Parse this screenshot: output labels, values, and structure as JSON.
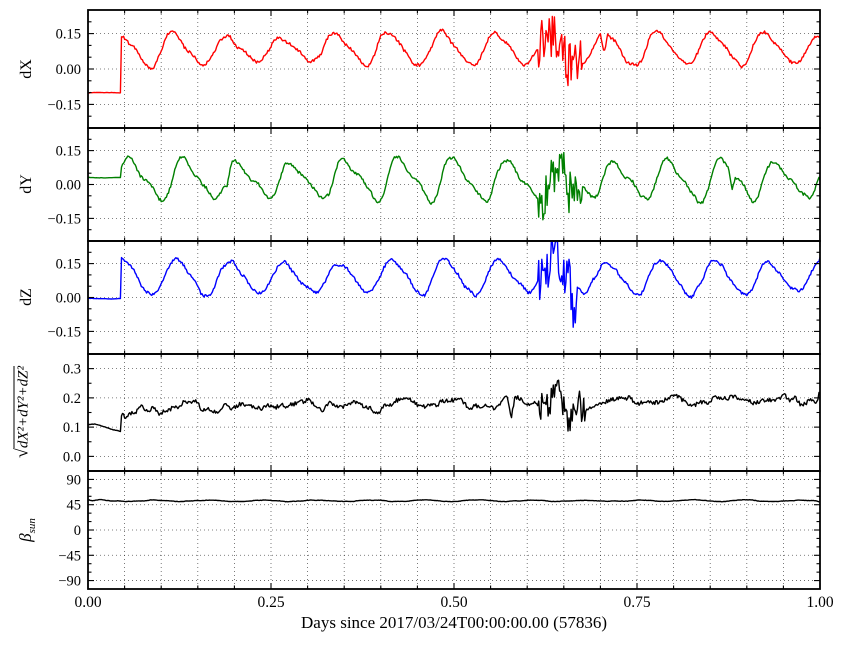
{
  "chart_data": {
    "type": "line",
    "xlabel": "Days since 2017/03/24T00:00:00.00 (57836)",
    "xlim": [
      0,
      1
    ],
    "xticks": [
      [
        0,
        "0.00"
      ],
      [
        0.25,
        "0.25"
      ],
      [
        0.5,
        "0.50"
      ],
      [
        0.75,
        "0.75"
      ],
      [
        1,
        "1.00"
      ]
    ],
    "x_minor_step": 0.05,
    "grid": "dotted",
    "legend": "none",
    "subplots": [
      {
        "ylabel": "dX",
        "color": "#ff0000",
        "ylim": [
          -0.25,
          0.25
        ],
        "yticks": [
          [
            -0.15,
            "−0.15"
          ],
          [
            0,
            "0.00"
          ],
          [
            0.15,
            "0.15"
          ]
        ],
        "y_minor_step": 0.05,
        "signal": {
          "flat": {
            "to": 0.045,
            "value": -0.1
          },
          "osc": {
            "mean": 0.085,
            "amp": 0.062,
            "period": 0.0735,
            "phase": 1.57,
            "h2": 0.15,
            "amp_mod": 0.15,
            "noise": 0.0075
          },
          "burst": {
            "from": 0.615,
            "to": 0.675,
            "noise": 0.05
          },
          "pulses": [
            {
              "x": 0.625,
              "w": 0.004,
              "dy": 0.06
            },
            {
              "x": 0.655,
              "w": 0.004,
              "dy": -0.1
            },
            {
              "x": 0.705,
              "w": 0.005,
              "dy": -0.08
            }
          ]
        }
      },
      {
        "ylabel": "dY",
        "color": "#008000",
        "ylim": [
          -0.25,
          0.25
        ],
        "yticks": [
          [
            -0.15,
            "−0.15"
          ],
          [
            0,
            "0.00"
          ],
          [
            0.15,
            "0.15"
          ]
        ],
        "y_minor_step": 0.05,
        "signal": {
          "flat": {
            "to": 0.045,
            "value": 0.03
          },
          "osc": {
            "mean": 0.02,
            "amp": 0.08,
            "period": 0.0735,
            "phase": 0.3,
            "h2": 0.3,
            "amp_mod": 0.12,
            "noise": 0.008
          },
          "burst": {
            "from": 0.615,
            "to": 0.675,
            "noise": 0.045,
            "bias": -0.02
          },
          "pulses": [
            {
              "x": 0.19,
              "w": 0.005,
              "dy": -0.05
            },
            {
              "x": 0.655,
              "w": 0.005,
              "dy": -0.1
            },
            {
              "x": 0.88,
              "w": 0.005,
              "dy": -0.07
            }
          ]
        }
      },
      {
        "ylabel": "dZ",
        "color": "#0000ff",
        "ylim": [
          -0.25,
          0.25
        ],
        "yticks": [
          [
            -0.15,
            "−0.15"
          ],
          [
            0,
            "0.00"
          ],
          [
            0.15,
            "0.15"
          ]
        ],
        "y_minor_step": 0.05,
        "signal": {
          "flat": {
            "to": 0.045,
            "value": -0.005
          },
          "osc": {
            "mean": 0.09,
            "amp": 0.07,
            "period": 0.0735,
            "phase": 1.2,
            "h2": 0.12,
            "amp_mod": 0.12,
            "noise": 0.008
          },
          "burst": {
            "from": 0.615,
            "to": 0.668,
            "noise": 0.05
          },
          "pulses": [
            {
              "x": 0.638,
              "w": 0.006,
              "dy": 0.13
            },
            {
              "x": 0.663,
              "w": 0.005,
              "dy": -0.18
            }
          ]
        }
      },
      {
        "ylabel": "√dX²+dY²+dZ²",
        "ylabel_parts": {
          "radical": "√",
          "radicand": "dX²+dY²+dZ²"
        },
        "color": "#000000",
        "ylim": [
          -0.05,
          0.35
        ],
        "yticks": [
          [
            0,
            "0.0"
          ],
          [
            0.1,
            "0.1"
          ],
          [
            0.2,
            "0.2"
          ],
          [
            0.3,
            "0.3"
          ]
        ],
        "y_minor_step": 0.05,
        "signal": {
          "flat": {
            "to": 0.045,
            "value": 0.11
          },
          "osc": {
            "mean": 0.165,
            "amp": 0.012,
            "period": 0.0735,
            "phase": 0,
            "slope": 0.03,
            "amp_mod": 0.3,
            "noise": 0.009
          },
          "burst": {
            "from": 0.615,
            "to": 0.68,
            "noise": 0.025
          },
          "pulses": [
            {
              "x": 0.05,
              "w": 0.04,
              "dy": -0.03
            },
            {
              "x": 0.578,
              "w": 0.005,
              "dy": -0.08
            },
            {
              "x": 0.64,
              "w": 0.008,
              "dy": 0.085
            },
            {
              "x": 0.658,
              "w": 0.005,
              "dy": -0.12
            }
          ]
        }
      },
      {
        "ylabel": "β_sun",
        "ylabel_parts": {
          "symbol": "β",
          "subscript": "sun"
        },
        "color": "#000000",
        "ylim": [
          -105,
          105
        ],
        "yticks": [
          [
            -90,
            "−90"
          ],
          [
            -45,
            "−45"
          ],
          [
            0,
            "0"
          ],
          [
            45,
            "45"
          ],
          [
            90,
            "90"
          ]
        ],
        "y_minor_step": 15,
        "signal": {
          "osc": {
            "mean": 52,
            "amp": 1.3,
            "period": 0.0735,
            "phase": 0,
            "noise": 0.4
          }
        }
      }
    ]
  }
}
